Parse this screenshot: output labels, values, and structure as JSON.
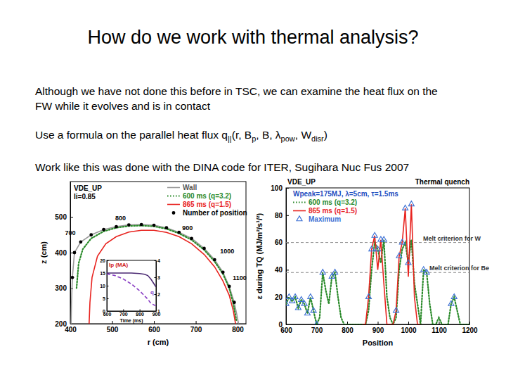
{
  "slide": {
    "title": "How do we work with thermal analysis?",
    "paragraphs": [
      {
        "lines": [
          "Although we have not done this before in TSC, we can examine the heat flux on the",
          "FW while it evolves and is in contact"
        ]
      },
      {
        "runs": [
          {
            "text": "Use a formula on the parallel heat flux q"
          },
          {
            "text": "||",
            "sub": true
          },
          {
            "text": "(r, B"
          },
          {
            "text": "p",
            "sub": true
          },
          {
            "text": ", B, λ"
          },
          {
            "text": "pow",
            "sub": true
          },
          {
            "text": ", W"
          },
          {
            "text": "disr",
            "sub": true
          },
          {
            "text": ")"
          }
        ]
      },
      {
        "lines": [
          "Work like this was done with the DINA code for ITER, Sugihara Nuc Fus 2007"
        ]
      }
    ]
  },
  "chart_data": [
    {
      "type": "line",
      "title": "VDE_UP",
      "subtitle": "li=0.85",
      "x_label": "r (cm)",
      "y_label": "z (cm)",
      "xlim": [
        400,
        820
      ],
      "xticks": [
        400,
        500,
        600,
        700,
        800
      ],
      "ylim": [
        200,
        600
      ],
      "yticks": [
        200,
        300,
        400,
        500
      ],
      "legend": "upper right",
      "series": [
        {
          "name": "Wall",
          "color": "#9a9a9a",
          "line_style": "solid",
          "x": [
            402,
            403,
            405,
            410,
            425,
            450,
            480,
            510,
            540,
            570,
            600,
            630,
            660,
            690,
            720,
            745,
            765,
            780,
            792,
            800,
            802
          ],
          "values": [
            200,
            260,
            330,
            400,
            430,
            450,
            465,
            473,
            478,
            479,
            477,
            470,
            457,
            440,
            412,
            380,
            345,
            305,
            260,
            215,
            200
          ]
        },
        {
          "name": "600 ms (q=3.2)",
          "color": "#2a8a2a",
          "line_style": "dotted",
          "x": [
            415,
            420,
            430,
            450,
            480,
            510,
            540,
            570,
            600,
            630,
            660,
            690,
            720,
            745,
            765,
            780,
            790,
            797
          ],
          "values": [
            300,
            370,
            410,
            440,
            460,
            470,
            475,
            476,
            474,
            467,
            454,
            436,
            408,
            375,
            340,
            300,
            255,
            210
          ]
        },
        {
          "name": "865 ms (q=1.5)",
          "color": "#e8231f",
          "line_style": "solid",
          "x": [
            445,
            447,
            452,
            465,
            485,
            510,
            540,
            570,
            600,
            630,
            660,
            690,
            720,
            745,
            765,
            780,
            790,
            795
          ],
          "values": [
            200,
            260,
            330,
            390,
            425,
            445,
            458,
            463,
            463,
            457,
            445,
            425,
            395,
            360,
            320,
            280,
            235,
            200
          ]
        },
        {
          "name": "Number of position",
          "type": "scatter",
          "marker": "circle",
          "color": "#000000",
          "x": [
            405,
            410,
            425,
            450,
            480,
            510,
            540,
            570,
            600,
            630,
            660,
            690,
            720,
            745,
            765,
            780,
            792
          ],
          "values": [
            330,
            400,
            430,
            450,
            465,
            473,
            478,
            479,
            477,
            470,
            457,
            440,
            412,
            380,
            345,
            305,
            260
          ]
        }
      ],
      "annotations": [
        {
          "text": "700",
          "x": 400,
          "y": 455
        },
        {
          "text": "800",
          "x": 520,
          "y": 497
        },
        {
          "text": "900",
          "x": 680,
          "y": 470
        },
        {
          "text": "1000",
          "x": 775,
          "y": 405
        },
        {
          "text": "1100",
          "x": 805,
          "y": 330
        }
      ]
    },
    {
      "type": "line",
      "x_label": "Time (ms)",
      "y_label": "Ip (MA)",
      "y2_label": "q",
      "xlim": [
        600,
        900
      ],
      "xticks": [
        600,
        700,
        800,
        900
      ],
      "ylim": [
        0,
        20
      ],
      "yticks": [
        0,
        5,
        10,
        15,
        20
      ],
      "y2lim": [
        1,
        4
      ],
      "y2ticks": [
        1,
        2,
        3,
        4
      ],
      "series": [
        {
          "color": "#4b2a73",
          "line_style": "solid",
          "x": [
            600,
            650,
            700,
            750,
            800,
            830,
            850,
            870,
            890,
            900
          ],
          "values": [
            15,
            15,
            15,
            15,
            14.8,
            14.5,
            14,
            12.5,
            10.5,
            9.5
          ]
        },
        {
          "color": "#8a3fc4",
          "line_style": "dashed",
          "axis": "y2",
          "x": [
            600,
            650,
            700,
            750,
            800,
            850,
            865,
            880,
            900
          ],
          "values": [
            3.2,
            3.1,
            2.9,
            2.6,
            2.2,
            1.7,
            1.5,
            1.4,
            1.3
          ]
        }
      ]
    },
    {
      "type": "line",
      "title": "VDE_UP",
      "subtitle": "Thermal quench",
      "legend_title": "Wpeak=175MJ, λ=5cm, τ=1.5ms",
      "x_label": "Position",
      "y_label": "ε during TQ (MJ/m²/s¹/²)",
      "xlim": [
        600,
        1200
      ],
      "xticks": [
        600,
        700,
        800,
        900,
        1000,
        1100,
        1200
      ],
      "ylim": [
        0,
        100
      ],
      "yticks": [
        0,
        20,
        40,
        60,
        80,
        100
      ],
      "legend": "upper left",
      "reference_lines": [
        {
          "value": 60,
          "label": "Melt criterion for W"
        },
        {
          "value": 38,
          "label": "Melt criterion for Be"
        }
      ],
      "series": [
        {
          "name": "600 ms (q=3.2)",
          "color": "#2a8a2a",
          "line_style": "dotted",
          "x": [
            600,
            610,
            620,
            630,
            640,
            650,
            660,
            670,
            680,
            690,
            700,
            710,
            720,
            730,
            740,
            750,
            760,
            770,
            780,
            790,
            800,
            810,
            820,
            830,
            840,
            850,
            860,
            870,
            880,
            890,
            900,
            910,
            920,
            930,
            940,
            950,
            960,
            970,
            980,
            990,
            1000,
            1010,
            1020,
            1030,
            1040,
            1050,
            1060,
            1070,
            1080,
            1090,
            1100,
            1110,
            1120,
            1130,
            1140,
            1150,
            1160,
            1170,
            1180,
            1190,
            1200
          ],
          "values": [
            15,
            20,
            17,
            20,
            12,
            18,
            15,
            8,
            20,
            10,
            0,
            5,
            38,
            25,
            15,
            35,
            38,
            20,
            5,
            0,
            0,
            0,
            0,
            0,
            0,
            0,
            0,
            10,
            40,
            60,
            55,
            45,
            62,
            20,
            5,
            0,
            5,
            40,
            55,
            60,
            45,
            62,
            30,
            15,
            0,
            40,
            38,
            15,
            0,
            0,
            5,
            0,
            0,
            0,
            15,
            20,
            10,
            0,
            0,
            0,
            0
          ]
        },
        {
          "name": "865 ms (q=1.5)",
          "color": "#e8231f",
          "line_style": "solid",
          "x": [
            850,
            860,
            870,
            880,
            890,
            900,
            910,
            920,
            930,
            940,
            950,
            960,
            970,
            980,
            990,
            1000,
            1010,
            1020,
            1030,
            1040
          ],
          "values": [
            0,
            0,
            20,
            55,
            65,
            40,
            62,
            30,
            0,
            0,
            0,
            10,
            50,
            60,
            85,
            35,
            88,
            20,
            0,
            0
          ]
        },
        {
          "name": "Maximum",
          "type": "scatter",
          "marker": "triangle",
          "color": "#3b6fd4",
          "x": [
            600,
            610,
            620,
            630,
            640,
            650,
            660,
            670,
            680,
            690,
            700,
            720,
            750,
            760,
            870,
            880,
            890,
            900,
            910,
            920,
            960,
            970,
            980,
            990,
            1000,
            1010,
            1050,
            1060,
            1140,
            1150
          ],
          "values": [
            15,
            20,
            17,
            20,
            12,
            18,
            15,
            8,
            20,
            10,
            0,
            38,
            35,
            38,
            20,
            55,
            65,
            55,
            62,
            62,
            10,
            50,
            60,
            85,
            45,
            88,
            40,
            38,
            15,
            20
          ]
        }
      ]
    }
  ]
}
